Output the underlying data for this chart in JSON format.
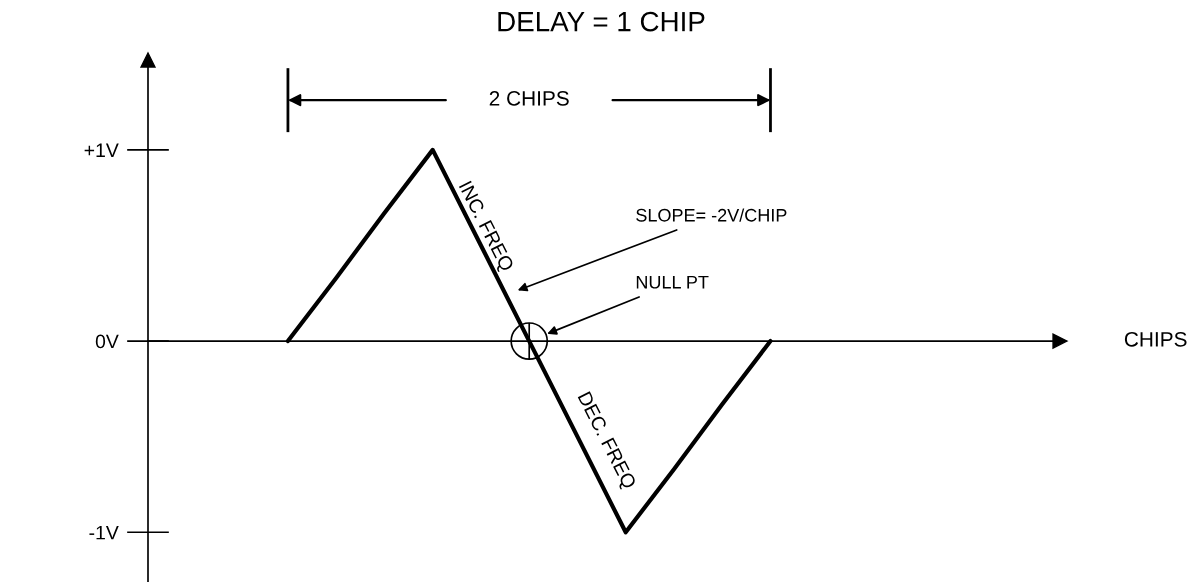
{
  "chart_data": {
    "type": "line",
    "title": "DELAY = 1 CHIP",
    "categories": [
      null,
      null,
      null,
      null,
      null,
      null,
      null,
      null,
      null,
      null,
      null
    ],
    "series": [
      {
        "color": "#000000",
        "values": [
          0,
          0.33,
          0.67,
          1,
          0.5,
          0,
          -0.5,
          -1,
          -0.67,
          -0.33,
          0
        ]
      }
    ],
    "ylim": [
      -1.26,
      1.47
    ],
    "yticks": [
      {
        "value": 1,
        "label": "+1V"
      },
      {
        "value": 0,
        "label": "0V"
      },
      {
        "value": -1,
        "label": "-1V"
      }
    ],
    "tick_labels": "y",
    "legend": false,
    "marker": "none",
    "line_style": "solid",
    "annotations": [
      "2 CHIPS",
      "SLOPE= -2V/CHIP",
      "NULL PT",
      "INC. FREQ",
      "DEC. FREQ",
      "CHIPS"
    ]
  }
}
